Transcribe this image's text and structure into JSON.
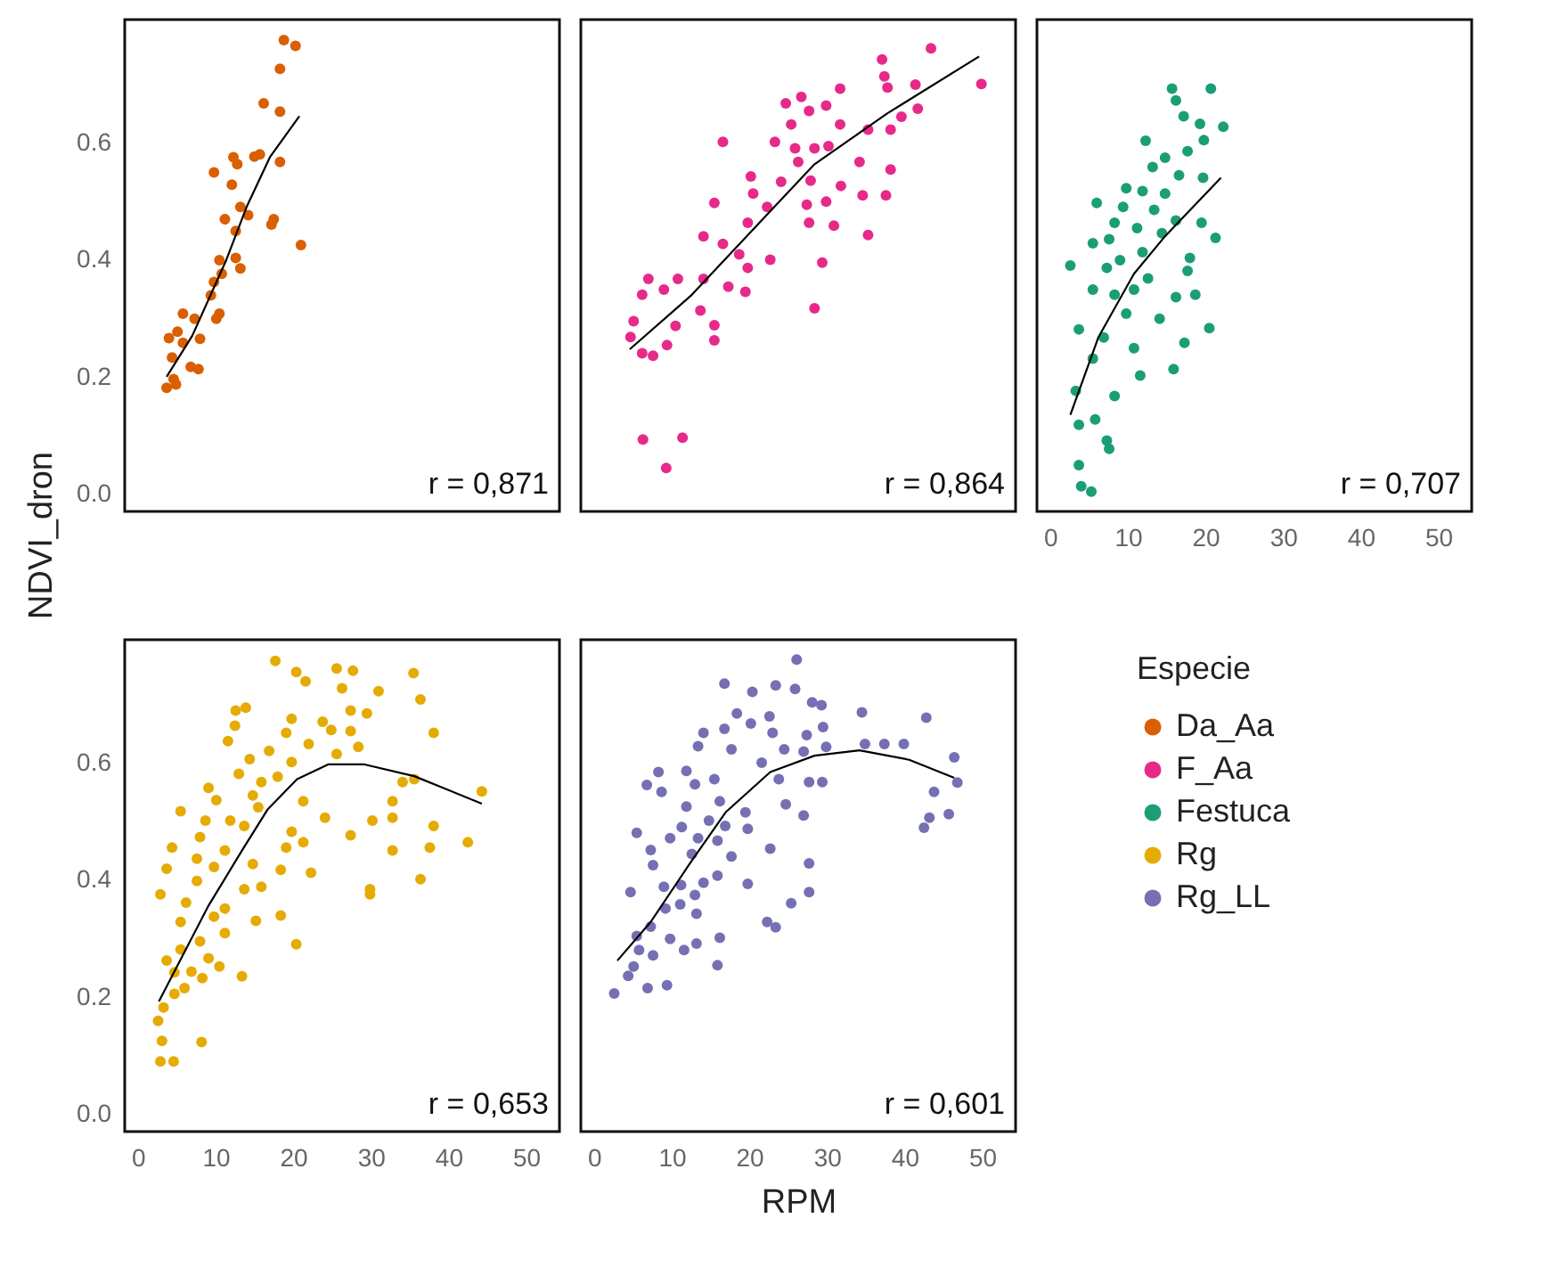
{
  "chart_data": [
    {
      "type": "scatter",
      "ylabel": "NDVI_dron",
      "xlim": [
        -1.7,
        54.3
      ],
      "ylim": [
        -0.03,
        0.81
      ],
      "yticks": [
        {
          "value": 0,
          "label": "0.0"
        },
        {
          "value": 0.2,
          "label": "0.2"
        },
        {
          "value": 0.4,
          "label": "0.4"
        },
        {
          "value": 0.6,
          "label": "0.6"
        }
      ],
      "tick_labels": "y",
      "annotations": [
        "r = 0,871"
      ],
      "series": [
        {
          "name": "Da_Aa",
          "color": "#d95f02",
          "marker": "circle",
          "x": [
            18.8,
            20.3,
            18.3,
            16.2,
            18.3,
            12.3,
            12.8,
            15.0,
            15.7,
            18.3,
            9.8,
            12.1,
            13.2,
            14.2,
            11.2,
            17.5,
            17.2,
            12.6,
            21.0,
            10.5,
            12.6,
            13.2,
            10.8,
            9.8,
            9.4,
            10.5,
            10.1,
            5.8,
            7.3,
            5.1,
            4.0,
            8.0,
            5.8,
            4.4,
            6.8,
            7.8,
            4.6,
            3.7,
            4.9
          ],
          "values": [
            0.775,
            0.765,
            0.726,
            0.667,
            0.653,
            0.575,
            0.563,
            0.576,
            0.58,
            0.567,
            0.549,
            0.528,
            0.49,
            0.476,
            0.469,
            0.469,
            0.46,
            0.449,
            0.425,
            0.399,
            0.403,
            0.385,
            0.376,
            0.362,
            0.339,
            0.308,
            0.299,
            0.308,
            0.299,
            0.277,
            0.266,
            0.265,
            0.258,
            0.233,
            0.217,
            0.213,
            0.196,
            0.181,
            0.187
          ]
        },
        {
          "type": "line",
          "color": "#000000",
          "x": [
            3.7,
            7,
            11.4,
            14,
            17,
            20.8
          ],
          "values": [
            0.2,
            0.27,
            0.4,
            0.49,
            0.575,
            0.645
          ]
        }
      ]
    },
    {
      "type": "scatter",
      "xlim": [
        -1.7,
        54.3
      ],
      "ylim": [
        -0.03,
        0.81
      ],
      "tick_labels": false,
      "annotations": [
        "r = 0,864"
      ],
      "series": [
        {
          "name": "F_Aa",
          "color": "#e7298a",
          "marker": "circle",
          "x": [
            43.4,
            37.1,
            37.4,
            37.8,
            49.9,
            41.4,
            41.7,
            39.6,
            38.2,
            35.3,
            31.7,
            26.7,
            24.7,
            27.7,
            29.9,
            25.4,
            31.7,
            16.6,
            23.3,
            25.9,
            28.4,
            30.2,
            26.3,
            34.2,
            38.2,
            20.2,
            24.1,
            27.9,
            31.8,
            34.6,
            37.6,
            15.5,
            20.5,
            22.3,
            29.9,
            27.4,
            19.8,
            27.7,
            30.9,
            35.3,
            14.1,
            16.6,
            18.7,
            22.7,
            29.4,
            19.8,
            17.3,
            7.0,
            10.8,
            14.1,
            9.0,
            6.2,
            19.5,
            13.7,
            28.4,
            15.5,
            10.5,
            5.1,
            4.7,
            6.2,
            7.6,
            9.4,
            15.5,
            6.3,
            11.4,
            9.3
          ],
          "values": [
            0.761,
            0.742,
            0.713,
            0.694,
            0.7,
            0.699,
            0.658,
            0.644,
            0.622,
            0.622,
            0.692,
            0.678,
            0.667,
            0.654,
            0.663,
            0.631,
            0.631,
            0.601,
            0.601,
            0.59,
            0.59,
            0.594,
            0.567,
            0.567,
            0.554,
            0.542,
            0.533,
            0.535,
            0.526,
            0.51,
            0.51,
            0.497,
            0.513,
            0.49,
            0.499,
            0.494,
            0.463,
            0.463,
            0.458,
            0.442,
            0.44,
            0.427,
            0.409,
            0.4,
            0.395,
            0.386,
            0.354,
            0.367,
            0.367,
            0.367,
            0.349,
            0.34,
            0.345,
            0.313,
            0.317,
            0.288,
            0.287,
            0.295,
            0.268,
            0.24,
            0.236,
            0.254,
            0.262,
            0.093,
            0.096,
            0.044
          ]
        },
        {
          "type": "line",
          "color": "#000000",
          "x": [
            4.6,
            12.6,
            21.3,
            28.4,
            37.8,
            49.6
          ],
          "values": [
            0.247,
            0.34,
            0.463,
            0.563,
            0.65,
            0.747
          ]
        }
      ]
    },
    {
      "type": "scatter",
      "xlim": [
        -1.7,
        54.3
      ],
      "ylim": [
        -0.03,
        0.81
      ],
      "xticks": [
        0,
        10,
        20,
        30,
        40,
        50
      ],
      "tick_labels": "x",
      "annotations": [
        "r = 0,707"
      ],
      "series": [
        {
          "name": "Festuca",
          "color": "#1b9e77",
          "marker": "circle",
          "x": [
            15.7,
            20.7,
            16.2,
            17.2,
            22.3,
            19.3,
            19.8,
            12.3,
            17.7,
            14.8,
            13.2,
            16.6,
            19.7,
            9.8,
            11.9,
            14.8,
            6.0,
            9.4,
            13.4,
            16.2,
            19.5,
            8.3,
            11.2,
            14.4,
            21.3,
            5.5,
            7.6,
            11.9,
            9.0,
            18.0,
            2.6,
            7.3,
            12.6,
            17.7,
            5.5,
            8.3,
            10.8,
            16.2,
            18.7,
            14.1,
            9.8,
            3.7,
            20.5,
            6.9,
            10.8,
            17.3,
            5.5,
            15.9,
            11.6,
            3.3,
            8.3,
            3.7,
            5.8,
            7.3,
            7.6,
            3.7,
            4.0,
            5.3
          ],
          "values": [
            0.692,
            0.692,
            0.672,
            0.645,
            0.627,
            0.632,
            0.604,
            0.603,
            0.585,
            0.574,
            0.558,
            0.544,
            0.54,
            0.522,
            0.517,
            0.513,
            0.497,
            0.49,
            0.485,
            0.467,
            0.463,
            0.463,
            0.454,
            0.445,
            0.437,
            0.428,
            0.435,
            0.413,
            0.399,
            0.403,
            0.39,
            0.386,
            0.368,
            0.381,
            0.349,
            0.34,
            0.349,
            0.336,
            0.34,
            0.299,
            0.308,
            0.281,
            0.283,
            0.267,
            0.249,
            0.258,
            0.231,
            0.213,
            0.202,
            0.176,
            0.167,
            0.118,
            0.127,
            0.091,
            0.077,
            0.049,
            0.013,
            0.004
          ]
        },
        {
          "type": "line",
          "color": "#000000",
          "x": [
            2.6,
            6.2,
            10.8,
            14.8,
            22.0
          ],
          "values": [
            0.135,
            0.267,
            0.376,
            0.44,
            0.54
          ]
        }
      ]
    },
    {
      "type": "scatter",
      "xlim": [
        -1.7,
        54.3
      ],
      "ylim": [
        -0.03,
        0.81
      ],
      "xticks": [
        0,
        10,
        20,
        30,
        40,
        50
      ],
      "yticks": [
        {
          "value": 0,
          "label": "0.0"
        },
        {
          "value": 0.2,
          "label": "0.2"
        },
        {
          "value": 0.4,
          "label": "0.4"
        },
        {
          "value": 0.6,
          "label": "0.6"
        }
      ],
      "annotations": [
        "r = 0,653"
      ],
      "series": [
        {
          "name": "Rg",
          "color": "#e6ab02",
          "marker": "circle",
          "x": [
            17.7,
            20.4,
            21.6,
            25.6,
            27.7,
            35.5,
            26.3,
            31.0,
            36.4,
            12.6,
            13.9,
            19.8,
            23.8,
            27.4,
            29.5,
            12.5,
            38.1,
            19.1,
            24.9,
            27.4,
            11.6,
            22.0,
            16.9,
            28.4,
            14.4,
            25.6,
            19.8,
            13.0,
            15.9,
            18.0,
            9.1,
            34.1,
            35.6,
            44.3,
            10.1,
            21.3,
            14.8,
            32.8,
            5.5,
            11.9,
            24.1,
            8.7,
            13.7,
            15.5,
            30.2,
            32.8,
            27.4,
            38.1,
            8.0,
            19.8,
            21.3,
            4.4,
            11.2,
            19.1,
            37.6,
            42.5,
            32.8,
            7.6,
            9.8,
            14.8,
            18.4,
            22.3,
            3.7,
            7.6,
            36.4,
            29.9,
            29.9,
            2.9,
            13.7,
            6.2,
            11.2,
            15.9,
            18.4,
            5.5,
            9.8,
            15.2,
            20.4,
            8.0,
            11.2,
            3.7,
            5.5,
            9.1,
            13.4,
            6.9,
            10.5,
            8.3,
            4.7,
            6.0,
            2.6,
            3.3,
            3.1,
            8.2,
            2.9,
            4.6,
            4.7
          ],
          "values": [
            0.774,
            0.755,
            0.739,
            0.761,
            0.757,
            0.753,
            0.727,
            0.722,
            0.708,
            0.689,
            0.694,
            0.675,
            0.67,
            0.689,
            0.684,
            0.663,
            0.651,
            0.651,
            0.656,
            0.654,
            0.637,
            0.632,
            0.62,
            0.627,
            0.606,
            0.615,
            0.601,
            0.581,
            0.567,
            0.576,
            0.557,
            0.567,
            0.572,
            0.551,
            0.536,
            0.534,
            0.544,
            0.534,
            0.517,
            0.501,
            0.506,
            0.501,
            0.492,
            0.524,
            0.501,
            0.506,
            0.476,
            0.492,
            0.473,
            0.482,
            0.464,
            0.455,
            0.45,
            0.455,
            0.455,
            0.464,
            0.45,
            0.436,
            0.422,
            0.427,
            0.417,
            0.412,
            0.419,
            0.398,
            0.401,
            0.384,
            0.375,
            0.375,
            0.384,
            0.361,
            0.351,
            0.388,
            0.339,
            0.328,
            0.337,
            0.33,
            0.29,
            0.295,
            0.309,
            0.262,
            0.281,
            0.266,
            0.235,
            0.243,
            0.252,
            0.232,
            0.242,
            0.215,
            0.159,
            0.182,
            0.125,
            0.123,
            0.09,
            0.09,
            0.205
          ]
        },
        {
          "type": "line",
          "color": "#000000",
          "x": [
            2.7,
            9.1,
            13.4,
            16.7,
            20.5,
            24.5,
            29.2,
            35.6,
            44.3
          ],
          "values": [
            0.192,
            0.356,
            0.45,
            0.52,
            0.572,
            0.597,
            0.597,
            0.577,
            0.53
          ]
        }
      ]
    },
    {
      "type": "scatter",
      "xlabel": "RPM",
      "legend_title": "Especie",
      "legend": "right",
      "xlim": [
        -1.7,
        54.3
      ],
      "ylim": [
        -0.03,
        0.81
      ],
      "xticks": [
        0,
        10,
        20,
        30,
        40,
        50
      ],
      "tick_labels": "x",
      "annotations": [
        "r = 0,601"
      ],
      "series": [
        {
          "name": "Rg_LL",
          "color": "#7570b3",
          "marker": "circle",
          "x": [
            26.1,
            16.8,
            20.4,
            23.4,
            25.9,
            18.4,
            22.6,
            28.1,
            29.3,
            34.5,
            42.8,
            14.1,
            20.2,
            23.0,
            29.5,
            27.4,
            16.8,
            13.4,
            17.7,
            24.5,
            27.0,
            29.9,
            34.9,
            37.4,
            39.9,
            46.4,
            8.3,
            11.9,
            15.5,
            21.6,
            6.8,
            8.7,
            13.0,
            23.8,
            27.7,
            29.4,
            43.8,
            46.8,
            11.9,
            16.2,
            19.5,
            24.7,
            27.0,
            45.7,
            43.2,
            42.5,
            14.8,
            11.3,
            5.5,
            16.9,
            19.8,
            13.4,
            9.8,
            15.9,
            22.7,
            7.3,
            12.6,
            17.7,
            27.7,
            7.6,
            15.9,
            11.2,
            14.1,
            19.8,
            4.7,
            9.0,
            13.0,
            27.7,
            9.2,
            11.1,
            25.4,
            13.2,
            22.3,
            23.4,
            7.3,
            5.5,
            9.8,
            16.2,
            11.6,
            13.2,
            5.8,
            7.6,
            5.1,
            15.9,
            6.9,
            9.4,
            4.4,
            2.6
          ],
          "values": [
            0.776,
            0.735,
            0.721,
            0.732,
            0.726,
            0.684,
            0.679,
            0.703,
            0.698,
            0.686,
            0.677,
            0.651,
            0.667,
            0.651,
            0.661,
            0.647,
            0.658,
            0.628,
            0.623,
            0.623,
            0.619,
            0.627,
            0.632,
            0.632,
            0.632,
            0.609,
            0.584,
            0.586,
            0.572,
            0.6,
            0.562,
            0.55,
            0.563,
            0.572,
            0.567,
            0.567,
            0.55,
            0.566,
            0.525,
            0.534,
            0.515,
            0.529,
            0.51,
            0.512,
            0.506,
            0.489,
            0.501,
            0.49,
            0.48,
            0.492,
            0.487,
            0.471,
            0.471,
            0.467,
            0.453,
            0.451,
            0.444,
            0.44,
            0.428,
            0.425,
            0.407,
            0.391,
            0.395,
            0.393,
            0.379,
            0.388,
            0.374,
            0.379,
            0.351,
            0.358,
            0.36,
            0.342,
            0.328,
            0.319,
            0.32,
            0.304,
            0.299,
            0.301,
            0.28,
            0.291,
            0.28,
            0.271,
            0.252,
            0.254,
            0.215,
            0.22,
            0.236,
            0.206
          ]
        },
        {
          "type": "line",
          "color": "#000000",
          "x": [
            3.0,
            7.3,
            12.3,
            17.0,
            22.7,
            28.4,
            34.2,
            40.6,
            46.4
          ],
          "values": [
            0.262,
            0.328,
            0.427,
            0.516,
            0.584,
            0.612,
            0.621,
            0.605,
            0.574
          ]
        }
      ]
    }
  ]
}
